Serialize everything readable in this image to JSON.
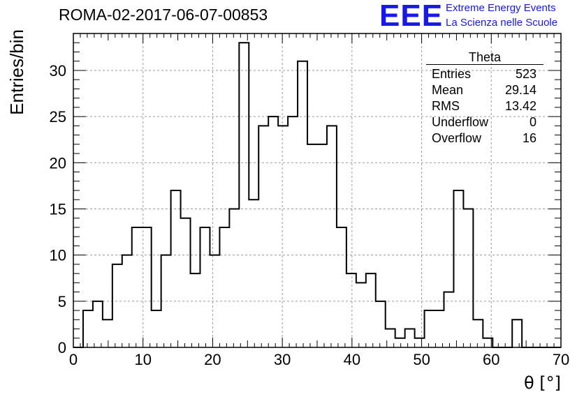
{
  "header": {
    "title": "ROMA-02-2017-06-07-00853"
  },
  "logo": {
    "mark": "EEE",
    "line1": "Extreme Energy Events",
    "line2": "La Scienza nelle Scuole",
    "color": "#1818e8"
  },
  "stats_box": {
    "title": "Theta",
    "rows": [
      {
        "label": "Entries",
        "value": "523"
      },
      {
        "label": "Mean",
        "value": "29.14"
      },
      {
        "label": "RMS",
        "value": "13.42"
      },
      {
        "label": "Underflow",
        "value": "0"
      },
      {
        "label": "Overflow",
        "value": "16"
      }
    ]
  },
  "chart_data": {
    "type": "bar",
    "histogram": true,
    "title": "ROMA-02-2017-06-07-00853",
    "xlabel": "θ [°]",
    "ylabel": "Entries/bin",
    "xlim": [
      0,
      70
    ],
    "ylim": [
      0,
      34
    ],
    "bin_width": 1.4,
    "x_ticks": [
      0,
      10,
      20,
      30,
      40,
      50,
      60,
      70
    ],
    "y_ticks": [
      0,
      5,
      10,
      15,
      20,
      25,
      30
    ],
    "grid": true,
    "line_color": "#000000",
    "series": [
      {
        "bin_edges_start": 0,
        "values": [
          0,
          4,
          5,
          3,
          9,
          10,
          13,
          13,
          4,
          10,
          17,
          14,
          8,
          13,
          10,
          13,
          15,
          33,
          16,
          24,
          25,
          24,
          25,
          31,
          22,
          22,
          24,
          13,
          8,
          7,
          8,
          5,
          2,
          1,
          2,
          1,
          4,
          4,
          6,
          17,
          15,
          3,
          1,
          0,
          0,
          3,
          0,
          0,
          0,
          0
        ]
      }
    ]
  }
}
